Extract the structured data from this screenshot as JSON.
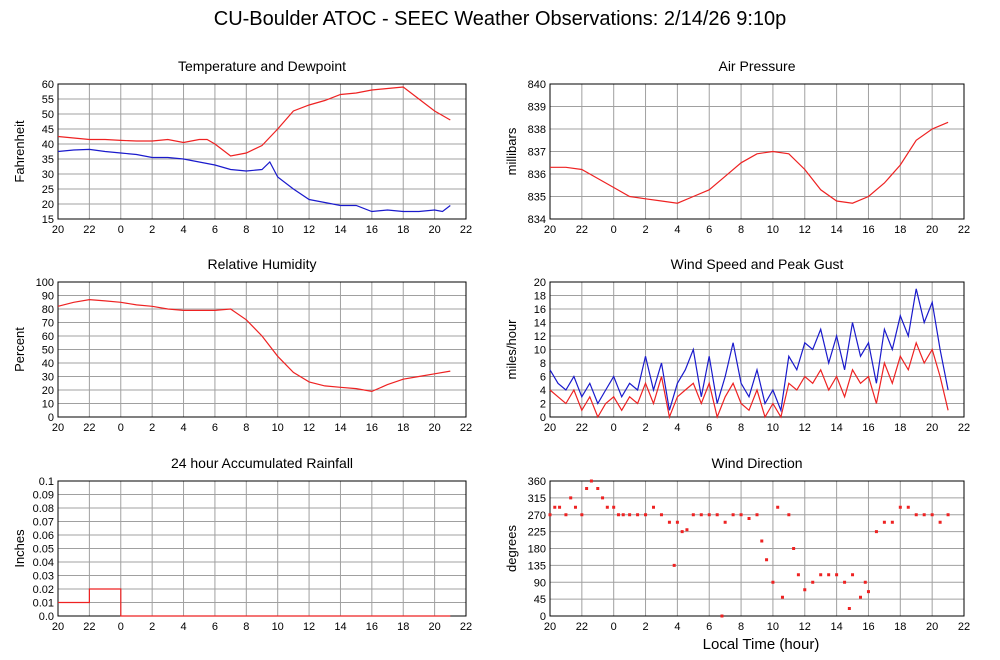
{
  "title": "CU-Boulder ATOC - SEEC Weather Observations: 2/14/26 9:10p",
  "x_axis_label": "Local Time (hour)",
  "colors": {
    "red": "#ee2222",
    "blue": "#1a1acc",
    "grid": "#a0a0a0"
  },
  "chart_data": [
    {
      "type": "line",
      "title": "Temperature and Dewpoint",
      "ylabel": "Fahrenheit",
      "ylim": [
        15,
        60
      ],
      "yticks": [
        15,
        20,
        25,
        30,
        35,
        40,
        45,
        50,
        55,
        60
      ],
      "x_ticks": [
        "20",
        "22",
        "0",
        "2",
        "4",
        "6",
        "8",
        "10",
        "12",
        "14",
        "16",
        "18",
        "20",
        "22"
      ],
      "series": [
        {
          "color": "red",
          "x": [
            20,
            21,
            22,
            23,
            24,
            25,
            26,
            27,
            28,
            29,
            29.5,
            30,
            30.5,
            31,
            32,
            33,
            34,
            35,
            36,
            37,
            38,
            39,
            40,
            41,
            42,
            43,
            44,
            45
          ],
          "values": [
            42.5,
            42,
            41.5,
            41.5,
            41.2,
            41,
            41,
            41.5,
            40.5,
            41.5,
            41.5,
            40,
            38,
            36,
            37,
            39.5,
            45,
            51,
            53,
            54.5,
            56.5,
            57,
            58,
            58.5,
            59,
            55,
            51,
            48
          ]
        },
        {
          "color": "blue",
          "x": [
            20,
            21,
            22,
            23,
            24,
            25,
            26,
            27,
            28,
            29,
            30,
            31,
            32,
            33,
            33.5,
            34,
            35,
            36,
            37,
            38,
            39,
            40,
            41,
            42,
            43,
            44,
            44.5,
            45
          ],
          "values": [
            37.5,
            38,
            38.2,
            37.5,
            37,
            36.5,
            35.5,
            35.5,
            35,
            34,
            33,
            31.5,
            31,
            31.5,
            34,
            29,
            25,
            21.5,
            20.5,
            19.5,
            19.5,
            17.5,
            18,
            17.5,
            17.5,
            18,
            17.5,
            19.5
          ]
        }
      ]
    },
    {
      "type": "line",
      "title": "Air Pressure",
      "ylabel": "millibars",
      "ylim": [
        834,
        840
      ],
      "yticks": [
        834,
        835,
        836,
        837,
        838,
        839,
        840
      ],
      "x_ticks": [
        "20",
        "22",
        "0",
        "2",
        "4",
        "6",
        "8",
        "10",
        "12",
        "14",
        "16",
        "18",
        "20",
        "22"
      ],
      "series": [
        {
          "color": "red",
          "x": [
            20,
            21,
            22,
            23,
            24,
            25,
            26,
            27,
            28,
            29,
            30,
            31,
            32,
            33,
            34,
            35,
            36,
            37,
            38,
            39,
            40,
            41,
            42,
            43,
            44,
            45
          ],
          "values": [
            836.3,
            836.3,
            836.2,
            835.8,
            835.4,
            835.0,
            834.9,
            834.8,
            834.7,
            835.0,
            835.3,
            835.9,
            836.5,
            836.9,
            837.0,
            836.9,
            836.2,
            835.3,
            834.8,
            834.7,
            835.0,
            835.6,
            836.4,
            837.5,
            838.0,
            838.3
          ]
        }
      ]
    },
    {
      "type": "line",
      "title": "Relative Humidity",
      "ylabel": "Percent",
      "ylim": [
        0,
        100
      ],
      "yticks": [
        0,
        10,
        20,
        30,
        40,
        50,
        60,
        70,
        80,
        90,
        100
      ],
      "x_ticks": [
        "20",
        "22",
        "0",
        "2",
        "4",
        "6",
        "8",
        "10",
        "12",
        "14",
        "16",
        "18",
        "20",
        "22"
      ],
      "series": [
        {
          "color": "red",
          "x": [
            20,
            21,
            22,
            23,
            24,
            25,
            26,
            27,
            28,
            29,
            30,
            31,
            32,
            33,
            34,
            35,
            36,
            37,
            38,
            39,
            40,
            41,
            42,
            43,
            44,
            45
          ],
          "values": [
            82,
            85,
            87,
            86,
            85,
            83,
            82,
            80,
            79,
            79,
            79,
            80,
            72,
            60,
            45,
            33,
            26,
            23,
            22,
            21,
            19,
            24,
            28,
            30,
            32,
            34
          ]
        }
      ]
    },
    {
      "type": "line",
      "title": "Wind Speed and Peak Gust",
      "ylabel": "miles/hour",
      "ylim": [
        0,
        20
      ],
      "yticks": [
        0,
        2,
        4,
        6,
        8,
        10,
        12,
        14,
        16,
        18,
        20
      ],
      "x_ticks": [
        "20",
        "22",
        "0",
        "2",
        "4",
        "6",
        "8",
        "10",
        "12",
        "14",
        "16",
        "18",
        "20",
        "22"
      ],
      "series": [
        {
          "color": "blue",
          "x": [
            20,
            20.5,
            21,
            21.5,
            22,
            22.5,
            23,
            23.5,
            24,
            24.5,
            25,
            25.5,
            26,
            26.5,
            27,
            27.5,
            28,
            28.5,
            29,
            29.5,
            30,
            30.5,
            31,
            31.5,
            32,
            32.5,
            33,
            33.5,
            34,
            34.5,
            35,
            35.5,
            36,
            36.5,
            37,
            37.5,
            38,
            38.5,
            39,
            39.5,
            40,
            40.5,
            41,
            41.5,
            42,
            42.5,
            43,
            43.5,
            44,
            44.5,
            45
          ],
          "values": [
            7,
            5,
            4,
            6,
            3,
            5,
            2,
            4,
            6,
            3,
            5,
            4,
            9,
            4,
            8,
            1,
            5,
            7,
            10,
            3,
            9,
            2,
            6,
            11,
            5,
            3,
            7,
            2,
            4,
            1,
            9,
            7,
            11,
            10,
            13,
            8,
            12,
            7,
            14,
            9,
            11,
            5,
            13,
            10,
            15,
            12,
            19,
            14,
            17,
            10,
            4
          ]
        },
        {
          "color": "red",
          "x": [
            20,
            20.5,
            21,
            21.5,
            22,
            22.5,
            23,
            23.5,
            24,
            24.5,
            25,
            25.5,
            26,
            26.5,
            27,
            27.5,
            28,
            28.5,
            29,
            29.5,
            30,
            30.5,
            31,
            31.5,
            32,
            32.5,
            33,
            33.5,
            34,
            34.5,
            35,
            35.5,
            36,
            36.5,
            37,
            37.5,
            38,
            38.5,
            39,
            39.5,
            40,
            40.5,
            41,
            41.5,
            42,
            42.5,
            43,
            43.5,
            44,
            44.5,
            45
          ],
          "values": [
            4,
            3,
            2,
            4,
            1,
            3,
            0,
            2,
            3,
            1,
            3,
            2,
            5,
            2,
            6,
            0,
            3,
            4,
            5,
            2,
            5,
            0,
            3,
            5,
            2,
            1,
            4,
            0,
            2,
            0,
            5,
            4,
            6,
            5,
            7,
            4,
            6,
            3,
            7,
            5,
            6,
            2,
            8,
            5,
            9,
            7,
            11,
            8,
            10,
            6,
            1
          ]
        }
      ]
    },
    {
      "type": "line",
      "title": "24 hour Accumulated Rainfall",
      "ylabel": "Inches",
      "ylim": [
        0,
        0.1
      ],
      "yticks": [
        "0.0",
        "0.01",
        "0.02",
        "0.03",
        "0.04",
        "0.05",
        "0.06",
        "0.07",
        "0.08",
        "0.09",
        "0.1"
      ],
      "x_ticks": [
        "20",
        "22",
        "0",
        "2",
        "4",
        "6",
        "8",
        "10",
        "12",
        "14",
        "16",
        "18",
        "20",
        "22"
      ],
      "series": [
        {
          "color": "red",
          "x": [
            20,
            21.8,
            21.8,
            22,
            22,
            24,
            24,
            45
          ],
          "values": [
            0.01,
            0.01,
            0.01,
            0.01,
            0.02,
            0.02,
            0.0,
            0.0
          ]
        }
      ]
    },
    {
      "type": "scatter",
      "title": "Wind Direction",
      "ylabel": "degrees",
      "ylim": [
        0,
        360
      ],
      "yticks": [
        0,
        45,
        90,
        135,
        180,
        225,
        270,
        315,
        360
      ],
      "x_ticks": [
        "20",
        "22",
        "0",
        "2",
        "4",
        "6",
        "8",
        "10",
        "12",
        "14",
        "16",
        "18",
        "20",
        "22"
      ],
      "series": [
        {
          "color": "red",
          "x": [
            20,
            20.3,
            20.6,
            21,
            21.3,
            21.6,
            22,
            22.3,
            22.6,
            23,
            23.3,
            23.6,
            24,
            24.3,
            24.6,
            25,
            25.5,
            26,
            26.5,
            27,
            27.5,
            27.8,
            28,
            28.3,
            28.6,
            29,
            29.5,
            30,
            30.5,
            30.8,
            31,
            31.5,
            32,
            32.5,
            33,
            33.3,
            33.6,
            34,
            34.3,
            34.6,
            35,
            35.3,
            35.6,
            36,
            36.5,
            37,
            37.5,
            38,
            38.5,
            38.8,
            39,
            39.5,
            39.8,
            40,
            40.5,
            41,
            41.5,
            42,
            42.5,
            43,
            43.5,
            44,
            44.5,
            45
          ],
          "values": [
            270,
            290,
            290,
            270,
            315,
            290,
            270,
            340,
            360,
            340,
            315,
            290,
            290,
            270,
            270,
            270,
            270,
            270,
            290,
            270,
            250,
            135,
            250,
            225,
            230,
            270,
            270,
            270,
            270,
            0,
            250,
            270,
            270,
            260,
            270,
            200,
            150,
            90,
            290,
            50,
            270,
            180,
            110,
            70,
            90,
            110,
            110,
            110,
            90,
            20,
            110,
            50,
            90,
            65,
            225,
            250,
            250,
            290,
            290,
            270,
            270,
            270,
            250,
            270
          ]
        }
      ]
    }
  ]
}
